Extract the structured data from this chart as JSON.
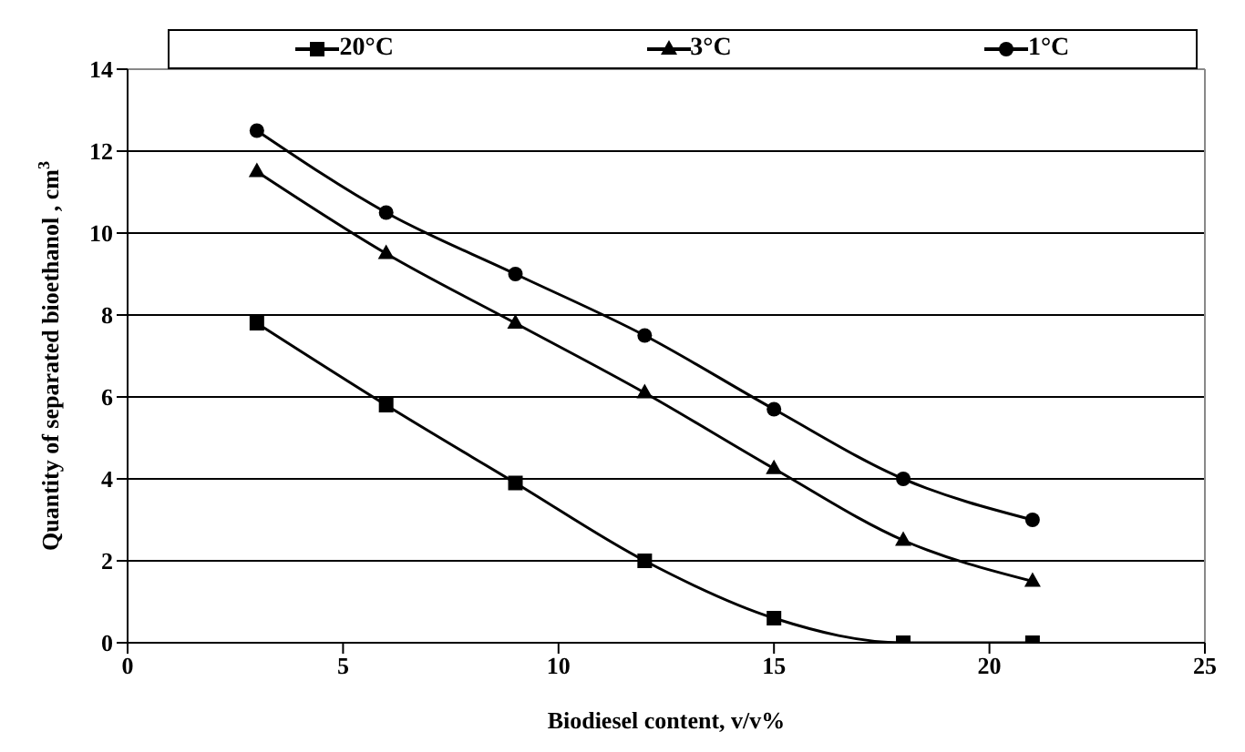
{
  "chart_data": {
    "type": "line",
    "xlabel": "Biodiesel content, v/v%",
    "ylabel": "Quantity of separated bioethanol , cm$^{3}$",
    "x": [
      3,
      6,
      9,
      12,
      15,
      18,
      21
    ],
    "series": [
      {
        "name": "20°C",
        "color": "#000000",
        "marker": "square",
        "values": [
          7.8,
          5.8,
          3.9,
          2.0,
          0.6,
          0,
          0
        ]
      },
      {
        "name": "3°C",
        "color": "#000000",
        "marker": "triangle",
        "values": [
          11.5,
          9.5,
          7.8,
          6.1,
          4.25,
          2.5,
          1.5
        ]
      },
      {
        "name": "1°C",
        "color": "#000000",
        "marker": "circle",
        "values": [
          12.5,
          10.5,
          9.0,
          7.5,
          5.7,
          4.0,
          3.0
        ]
      }
    ],
    "xlim": [
      0,
      25
    ],
    "xticks": [
      0,
      5,
      10,
      15,
      20,
      25
    ],
    "ylim": [
      0,
      14
    ],
    "yticks": [
      0,
      2,
      4,
      6,
      8,
      10,
      12,
      14
    ],
    "grid": "y",
    "legend": "top",
    "line_style": "solid"
  }
}
